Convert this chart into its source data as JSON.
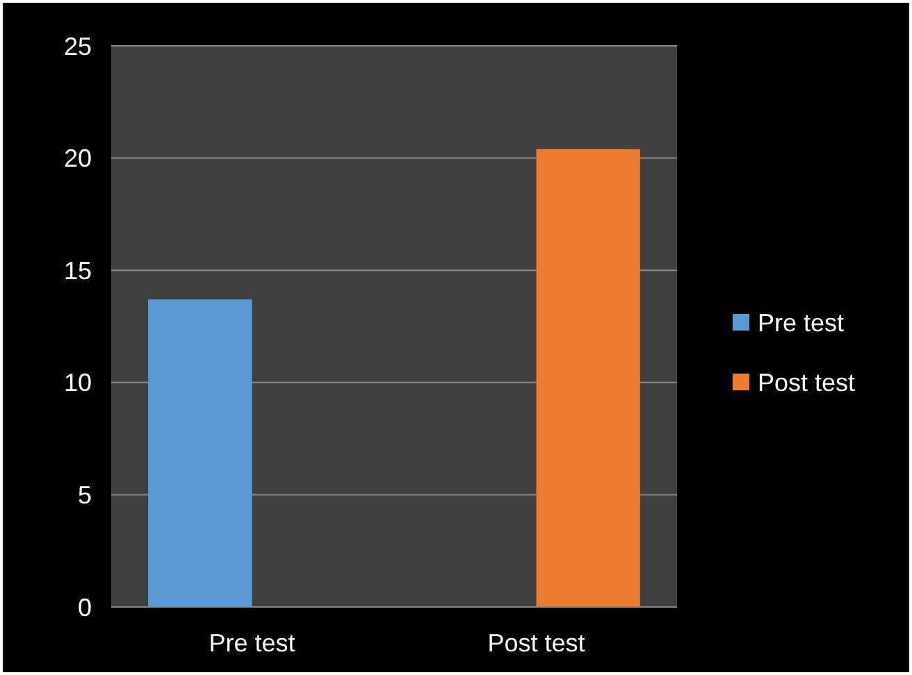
{
  "chart_data": {
    "type": "bar",
    "categories": [
      "Pre test",
      "Post test"
    ],
    "series": [
      {
        "name": "Pre test",
        "color": "#5b9bd5",
        "values": [
          13.7,
          null
        ]
      },
      {
        "name": "Post test",
        "color": "#ed7d31",
        "values": [
          null,
          20.4
        ]
      }
    ],
    "ylim": [
      0,
      25
    ],
    "yticks": [
      0,
      5,
      10,
      15,
      20,
      25
    ],
    "grid": "y",
    "legend": "right"
  }
}
